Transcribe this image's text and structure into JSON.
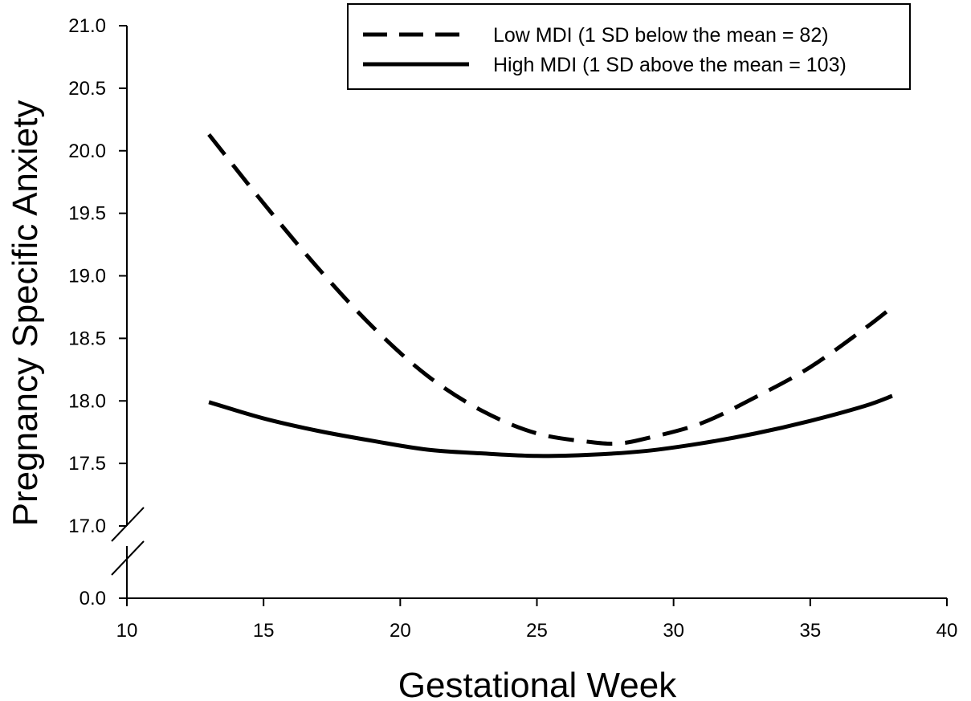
{
  "chart_data": {
    "type": "line",
    "xlabel": "Gestational Week",
    "ylabel": "Pregnancy Specific Anxiety",
    "xlim": [
      10,
      40
    ],
    "x_ticks": [
      "10",
      "15",
      "20",
      "25",
      "30",
      "35",
      "40"
    ],
    "x_tick_values": [
      10,
      15,
      20,
      25,
      30,
      35,
      40
    ],
    "ylim": [
      17.0,
      21.0
    ],
    "y_axis_break": true,
    "y_ticks": [
      "0.0",
      "17.0",
      "17.5",
      "18.0",
      "18.5",
      "19.0",
      "19.5",
      "20.0",
      "20.5",
      "21.0"
    ],
    "y_tick_values": [
      0.0,
      17.0,
      17.5,
      18.0,
      18.5,
      19.0,
      19.5,
      20.0,
      20.5,
      21.0
    ],
    "grid": false,
    "legend_position": "top-right",
    "series": [
      {
        "name": "Low MDI (1 SD below the mean = 82)",
        "style": "dashed",
        "color": "#000000",
        "x": [
          13,
          15,
          17,
          19,
          21,
          23,
          25,
          27,
          28,
          29,
          31,
          33,
          35,
          37,
          38
        ],
        "y": [
          20.13,
          19.58,
          19.06,
          18.59,
          18.2,
          17.92,
          17.74,
          17.67,
          17.66,
          17.7,
          17.82,
          18.03,
          18.27,
          18.58,
          18.75
        ]
      },
      {
        "name": "High MDI (1 SD above the mean = 103)",
        "style": "solid",
        "color": "#000000",
        "x": [
          13,
          15,
          17,
          19,
          21,
          23,
          25,
          27,
          29,
          31,
          33,
          35,
          37,
          38
        ],
        "y": [
          17.99,
          17.86,
          17.76,
          17.68,
          17.61,
          17.58,
          17.56,
          17.57,
          17.6,
          17.66,
          17.74,
          17.84,
          17.96,
          18.04
        ]
      }
    ]
  }
}
